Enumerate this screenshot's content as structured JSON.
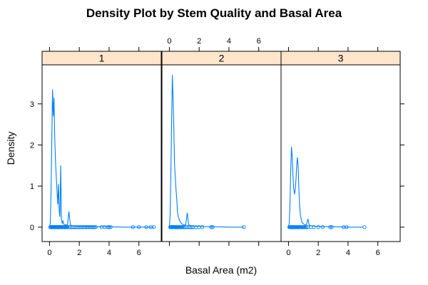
{
  "chart_data": {
    "type": "line",
    "title": "Density Plot by Stem Quality and Basal Area",
    "xlabel": "Basal Area (m2)",
    "ylabel": "Density",
    "xlim": [
      -0.5,
      7.5
    ],
    "ylim": [
      -0.35,
      3.95
    ],
    "x_ticks": [
      "0",
      "2",
      "4",
      "6"
    ],
    "y_ticks": [
      "0",
      "1",
      "2",
      "3"
    ],
    "grid": false,
    "line_color": "#0080ff",
    "strip_color": "#ffe5cc",
    "panels": [
      {
        "label": "1",
        "density": {
          "x": [
            0.0,
            0.05,
            0.1,
            0.15,
            0.2,
            0.25,
            0.3,
            0.35,
            0.4,
            0.45,
            0.5,
            0.55,
            0.6,
            0.65,
            0.7,
            0.75,
            0.8,
            0.85,
            0.9,
            0.95,
            1.0,
            1.1,
            1.2,
            1.3,
            1.4,
            1.5,
            1.6,
            1.7,
            1.8,
            2.0,
            2.5,
            3.0,
            4.0,
            5.0,
            6.0,
            7.0
          ],
          "y": [
            0.0,
            0.1,
            0.8,
            2.05,
            3.35,
            2.7,
            3.15,
            2.2,
            1.6,
            1.25,
            0.9,
            0.55,
            1.05,
            0.4,
            0.25,
            1.5,
            0.2,
            0.1,
            0.15,
            0.08,
            0.05,
            0.06,
            0.05,
            0.38,
            0.05,
            0.04,
            0.03,
            0.03,
            0.02,
            0.02,
            0.01,
            0.01,
            0.01,
            0.0,
            0.0,
            0.0
          ]
        },
        "points": [
          0.05,
          0.1,
          0.12,
          0.15,
          0.18,
          0.2,
          0.22,
          0.25,
          0.28,
          0.3,
          0.32,
          0.35,
          0.38,
          0.4,
          0.42,
          0.45,
          0.48,
          0.5,
          0.52,
          0.55,
          0.58,
          0.6,
          0.62,
          0.65,
          0.68,
          0.7,
          0.72,
          0.75,
          0.78,
          0.8,
          0.85,
          0.9,
          0.95,
          1.0,
          1.05,
          1.1,
          1.15,
          1.2,
          1.3,
          1.4,
          1.5,
          1.6,
          1.7,
          1.8,
          1.9,
          2.0,
          2.1,
          2.2,
          2.3,
          2.4,
          2.5,
          2.6,
          2.7,
          2.8,
          2.9,
          3.0,
          3.1,
          3.5,
          3.7,
          3.9,
          4.0,
          4.1,
          5.6,
          6.0,
          6.5,
          6.8,
          7.0
        ]
      },
      {
        "label": "2",
        "density": {
          "x": [
            0.0,
            0.05,
            0.1,
            0.15,
            0.2,
            0.25,
            0.3,
            0.35,
            0.4,
            0.45,
            0.5,
            0.55,
            0.6,
            0.65,
            0.7,
            0.75,
            0.8,
            0.85,
            0.9,
            1.0,
            1.1,
            1.2,
            1.3,
            1.4,
            1.6,
            1.8,
            2.0,
            2.5,
            3.0,
            4.0,
            5.0
          ],
          "y": [
            0.0,
            0.3,
            1.3,
            2.6,
            3.7,
            3.1,
            2.4,
            1.5,
            1.2,
            0.9,
            0.65,
            0.35,
            0.25,
            0.2,
            0.15,
            0.12,
            0.1,
            0.08,
            0.06,
            0.05,
            0.06,
            0.35,
            0.05,
            0.04,
            0.03,
            0.02,
            0.02,
            0.01,
            0.01,
            0.0,
            0.0
          ]
        },
        "points": [
          0.05,
          0.1,
          0.12,
          0.15,
          0.18,
          0.2,
          0.22,
          0.25,
          0.28,
          0.3,
          0.32,
          0.35,
          0.38,
          0.4,
          0.42,
          0.45,
          0.48,
          0.5,
          0.55,
          0.6,
          0.65,
          0.7,
          0.75,
          0.8,
          0.85,
          0.9,
          1.0,
          1.1,
          1.2,
          1.3,
          1.4,
          1.5,
          1.6,
          1.8,
          2.0,
          2.2,
          2.8,
          2.9,
          5.0
        ]
      },
      {
        "label": "3",
        "density": {
          "x": [
            0.0,
            0.05,
            0.1,
            0.15,
            0.2,
            0.25,
            0.3,
            0.35,
            0.4,
            0.45,
            0.5,
            0.55,
            0.6,
            0.65,
            0.7,
            0.75,
            0.8,
            0.85,
            0.9,
            1.0,
            1.1,
            1.2,
            1.3,
            1.4,
            1.6,
            1.8,
            2.0,
            2.5,
            3.0,
            4.0,
            5.0
          ],
          "y": [
            0.0,
            0.1,
            0.55,
            1.4,
            1.95,
            1.7,
            1.25,
            0.95,
            0.8,
            0.9,
            1.15,
            1.5,
            1.7,
            1.45,
            0.9,
            0.5,
            0.3,
            0.2,
            0.12,
            0.08,
            0.06,
            0.05,
            0.2,
            0.04,
            0.03,
            0.02,
            0.02,
            0.01,
            0.01,
            0.0,
            0.0
          ]
        },
        "points": [
          0.05,
          0.1,
          0.15,
          0.2,
          0.25,
          0.3,
          0.35,
          0.4,
          0.45,
          0.5,
          0.55,
          0.6,
          0.65,
          0.7,
          0.75,
          0.8,
          0.85,
          0.9,
          0.95,
          1.0,
          1.05,
          1.1,
          1.2,
          1.3,
          1.5,
          1.7,
          2.0,
          2.3,
          2.8,
          2.9,
          3.7,
          3.9,
          5.1
        ]
      }
    ]
  }
}
